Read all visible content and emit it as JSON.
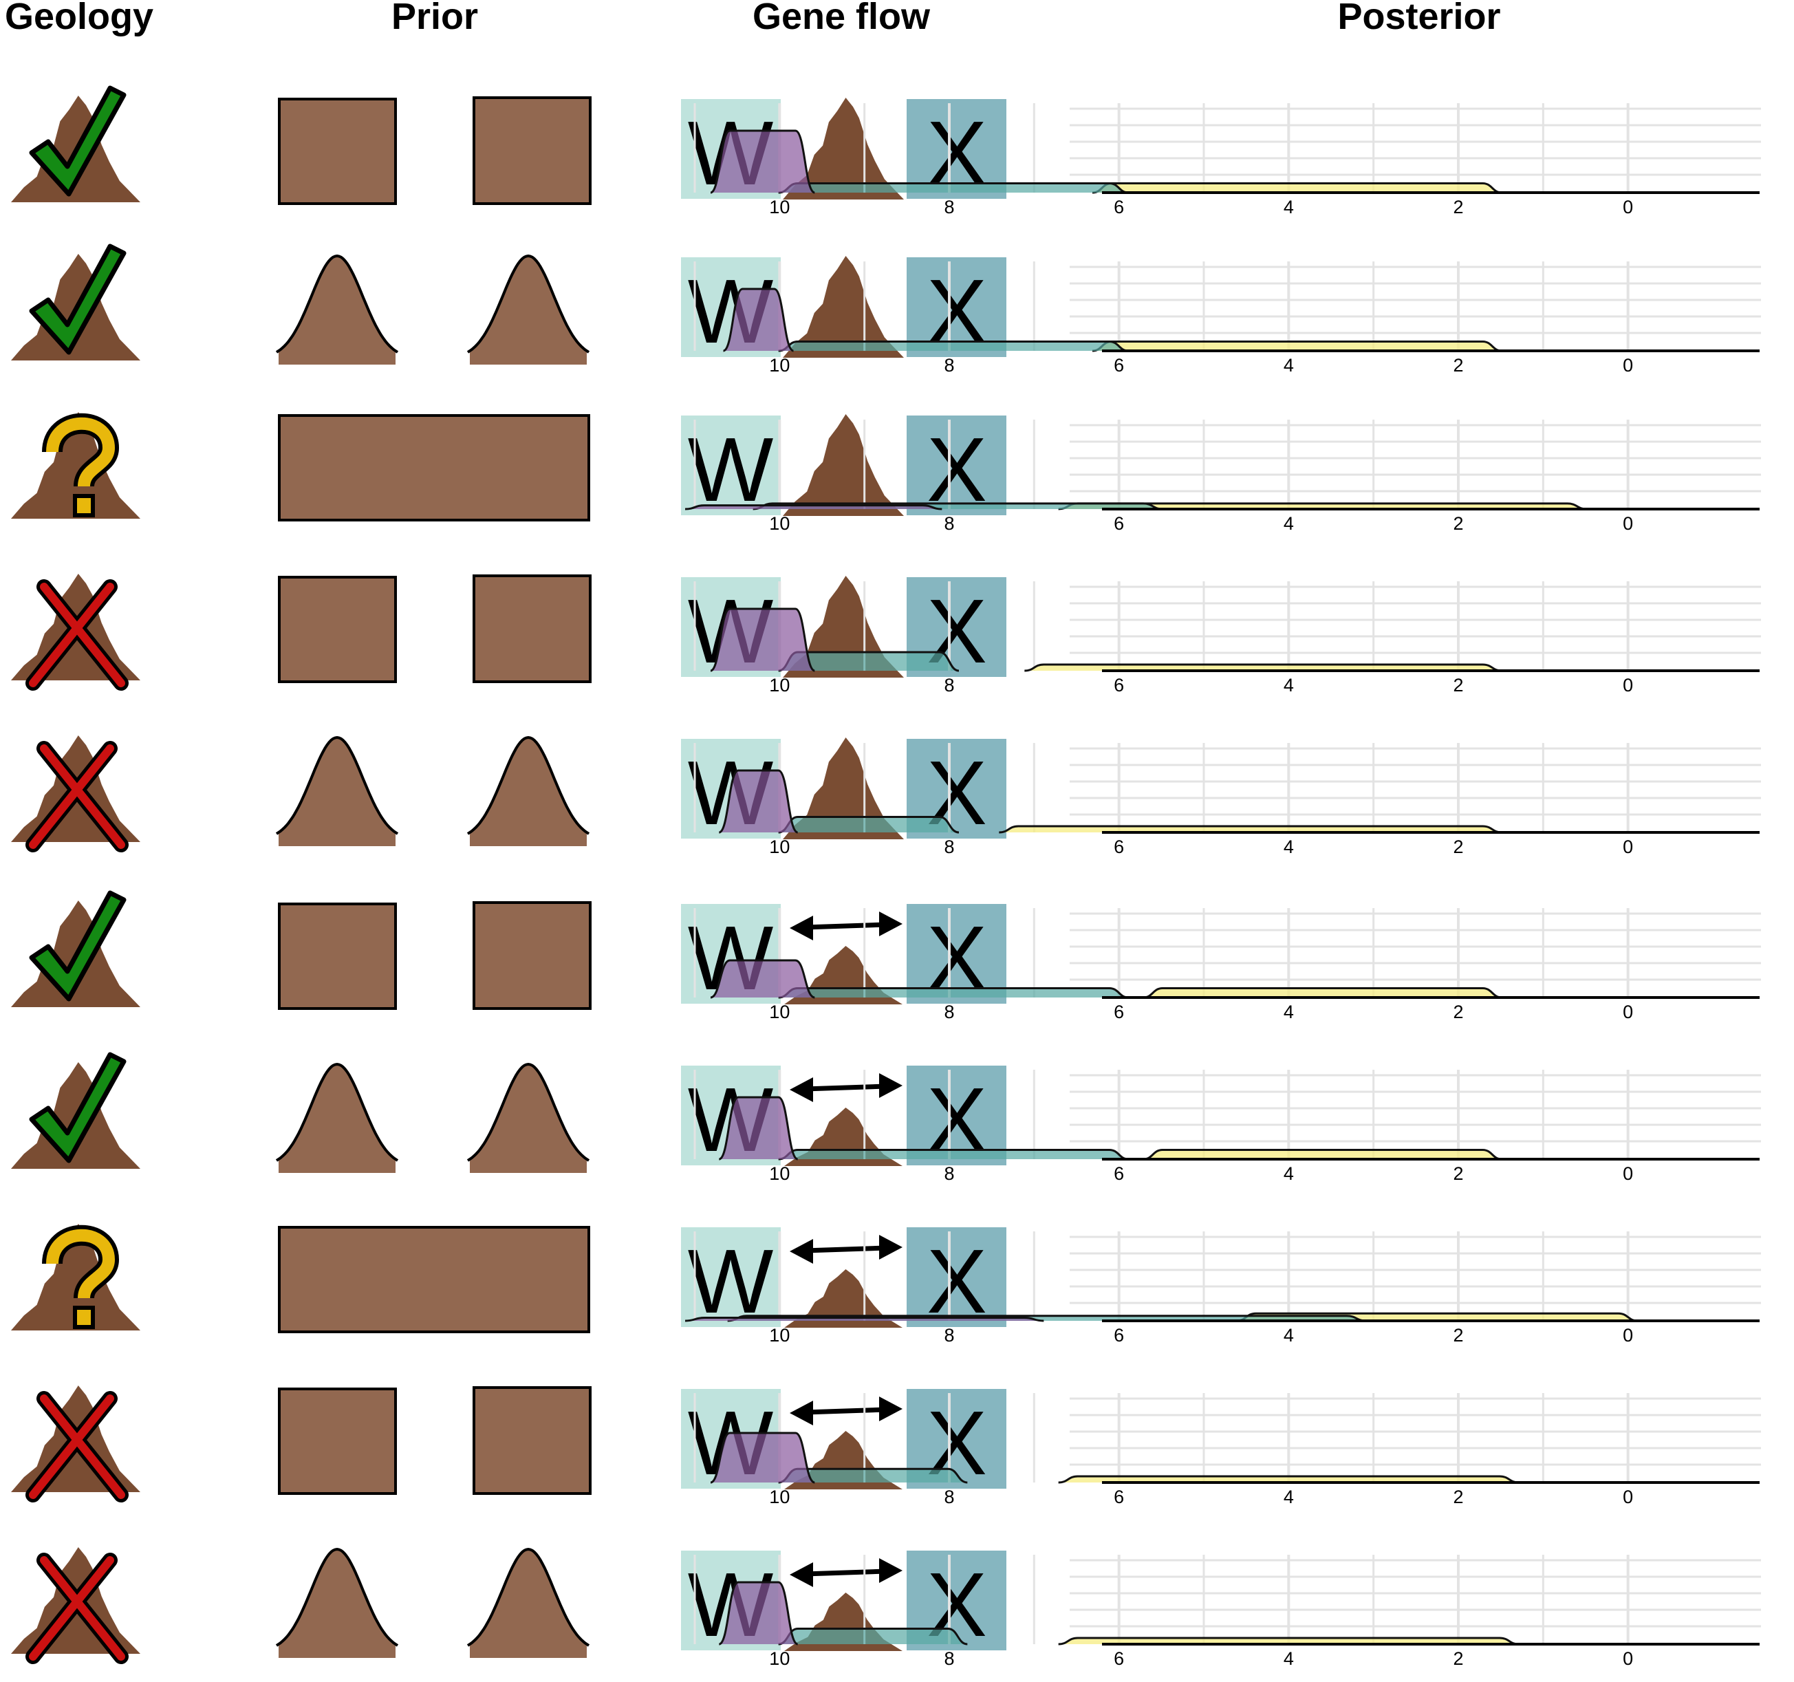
{
  "headers": {
    "geology": "Geology",
    "prior": "Prior",
    "gene_flow": "Gene flow",
    "posterior": "Posterior"
  },
  "labels": {
    "w": "W",
    "x": "X"
  },
  "colors": {
    "mountain": "#7a4d33",
    "prior_fill": "#926850",
    "check": "#148a14",
    "cross": "#cc1111",
    "question": "#e8b80c",
    "w_box": "#bfe3dd",
    "x_box": "#86b6c0",
    "purple": "#8a5a9e",
    "teal": "#58a9a4",
    "yellow": "#f6ec82",
    "grid": "#e3e3e3"
  },
  "axis_ticks": [
    "10",
    "8",
    "6",
    "4",
    "2",
    "0"
  ],
  "chart_data": {
    "type": "area",
    "panel_type": "stacked density ridges",
    "x_axis": {
      "reversed": true,
      "range": [
        11,
        -1
      ],
      "ticks": [
        10,
        8,
        6,
        4,
        2,
        0
      ]
    },
    "series_names": [
      "purple",
      "teal",
      "yellow"
    ],
    "rows": [
      {
        "geology": "check",
        "prior": "uniform",
        "gene_flow": "none",
        "purple": {
          "from": 10.7,
          "to": 9.7,
          "h": 1.0
        },
        "teal": {
          "from": 9.9,
          "to": 6.0,
          "h": 0.15
        },
        "yellow": {
          "from": 6.2,
          "to": 1.6,
          "h": 0.15
        }
      },
      {
        "geology": "check",
        "prior": "normal",
        "gene_flow": "none",
        "purple": {
          "from": 10.55,
          "to": 9.95,
          "h": 1.0
        },
        "teal": {
          "from": 9.9,
          "to": 6.0,
          "h": 0.15
        },
        "yellow": {
          "from": 6.2,
          "to": 1.6,
          "h": 0.15
        }
      },
      {
        "geology": "question",
        "prior": "broad",
        "gene_flow": "none",
        "purple": {
          "from": 11.0,
          "to": 8.2,
          "h": 0.06
        },
        "teal": {
          "from": 10.2,
          "to": 5.6,
          "h": 0.09
        },
        "yellow": {
          "from": 6.6,
          "to": 0.6,
          "h": 0.09
        }
      },
      {
        "geology": "cross",
        "prior": "uniform",
        "gene_flow": "none",
        "purple": {
          "from": 10.7,
          "to": 9.7,
          "h": 1.0
        },
        "teal": {
          "from": 9.9,
          "to": 8.0,
          "h": 0.3
        },
        "yellow": {
          "from": 7.0,
          "to": 1.6,
          "h": 0.1
        }
      },
      {
        "geology": "cross",
        "prior": "normal",
        "gene_flow": "none",
        "purple": {
          "from": 10.6,
          "to": 9.9,
          "h": 1.0
        },
        "teal": {
          "from": 9.9,
          "to": 8.0,
          "h": 0.25
        },
        "yellow": {
          "from": 7.3,
          "to": 1.6,
          "h": 0.1
        }
      },
      {
        "geology": "check",
        "prior": "uniform",
        "gene_flow": "bidirectional",
        "purple": {
          "from": 10.7,
          "to": 9.7,
          "h": 0.6
        },
        "teal": {
          "from": 9.9,
          "to": 6.0,
          "h": 0.15
        },
        "yellow": {
          "from": 5.6,
          "to": 1.6,
          "h": 0.15
        }
      },
      {
        "geology": "check",
        "prior": "normal",
        "gene_flow": "bidirectional",
        "purple": {
          "from": 10.6,
          "to": 9.9,
          "h": 1.0
        },
        "teal": {
          "from": 9.9,
          "to": 6.0,
          "h": 0.15
        },
        "yellow": {
          "from": 5.6,
          "to": 1.6,
          "h": 0.15
        }
      },
      {
        "geology": "question",
        "prior": "broad",
        "gene_flow": "bidirectional",
        "purple": {
          "from": 11.0,
          "to": 7.0,
          "h": 0.05
        },
        "teal": {
          "from": 10.5,
          "to": 3.2,
          "h": 0.08
        },
        "yellow": {
          "from": 4.5,
          "to": 0.0,
          "h": 0.12
        }
      },
      {
        "geology": "cross",
        "prior": "uniform",
        "gene_flow": "bidirectional",
        "purple": {
          "from": 10.7,
          "to": 9.7,
          "h": 0.8
        },
        "teal": {
          "from": 9.9,
          "to": 7.9,
          "h": 0.22
        },
        "yellow": {
          "from": 6.6,
          "to": 1.4,
          "h": 0.1
        }
      },
      {
        "geology": "cross",
        "prior": "normal",
        "gene_flow": "bidirectional",
        "purple": {
          "from": 10.6,
          "to": 9.9,
          "h": 1.0
        },
        "teal": {
          "from": 9.9,
          "to": 7.9,
          "h": 0.25
        },
        "yellow": {
          "from": 6.6,
          "to": 1.4,
          "h": 0.1
        }
      }
    ]
  }
}
